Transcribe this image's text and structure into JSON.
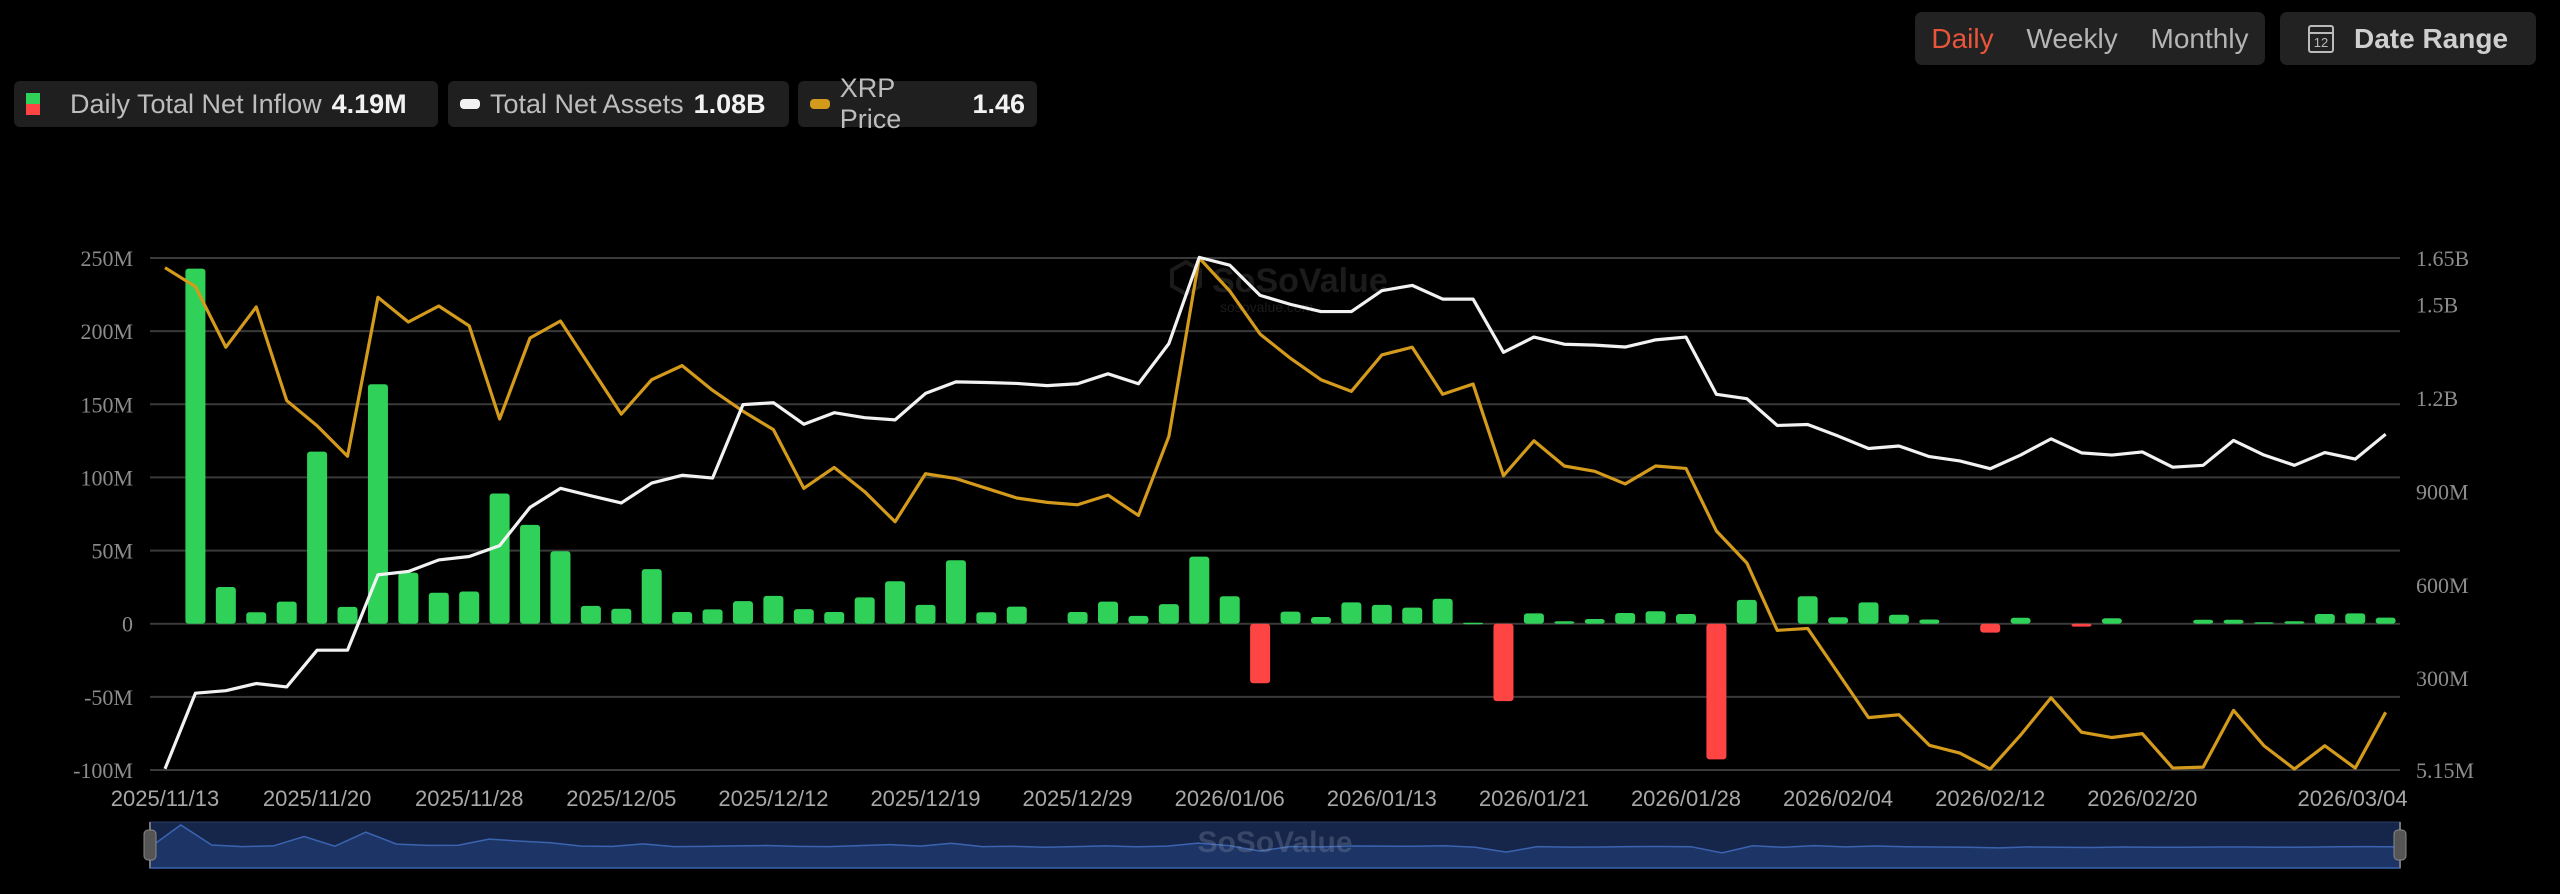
{
  "legend": {
    "inflow": {
      "label": "Daily Total Net Inflow",
      "value": "4.19M"
    },
    "assets": {
      "label": "Total Net Assets",
      "value": "1.08B"
    },
    "price": {
      "label": "XRP Price",
      "value": "1.46"
    }
  },
  "controls": {
    "periods": [
      "Daily",
      "Weekly",
      "Monthly"
    ],
    "active_period": "Daily",
    "date_range_label": "Date Range",
    "calendar_icon_text": "12"
  },
  "watermark": {
    "brand": "SoSoValue",
    "domain": "sosovalue.com"
  },
  "colors": {
    "inflow_positive": "#30d158",
    "inflow_negative": "#ff4444",
    "assets_line": "#f2f2f2",
    "price_line": "#d49a1c",
    "grid": "#3a3a3a",
    "slider_fill": "#1d3566"
  },
  "chart_data": {
    "type": "bar+line",
    "left_axis": {
      "ticks": [
        "250M",
        "200M",
        "150M",
        "100M",
        "50M",
        "0",
        "-50M",
        "-100M"
      ],
      "range_musd": [
        -100,
        250
      ]
    },
    "right_axis": {
      "ticks": [
        "1.65B",
        "1.5B",
        "1.2B",
        "900M",
        "600M",
        "300M",
        "5.15M"
      ],
      "range_busd": [
        0.00515,
        1.65
      ]
    },
    "price_axis": {
      "visible": false,
      "range": [
        1.346,
        2.402
      ]
    },
    "x_tick_labels": [
      {
        "i": 0,
        "label": "2025/11/13"
      },
      {
        "i": 5,
        "label": "2025/11/20"
      },
      {
        "i": 10,
        "label": "2025/11/28"
      },
      {
        "i": 15,
        "label": "2025/12/05"
      },
      {
        "i": 20,
        "label": "2025/12/12"
      },
      {
        "i": 25,
        "label": "2025/12/19"
      },
      {
        "i": 30,
        "label": "2025/12/29"
      },
      {
        "i": 35,
        "label": "2026/01/06"
      },
      {
        "i": 40,
        "label": "2026/01/13"
      },
      {
        "i": 45,
        "label": "2026/01/21"
      },
      {
        "i": 50,
        "label": "2026/01/28"
      },
      {
        "i": 55,
        "label": "2026/02/04"
      },
      {
        "i": 60,
        "label": "2026/02/12"
      },
      {
        "i": 65,
        "label": "2026/02/20"
      },
      {
        "i": 73,
        "label": "2026/03/04"
      }
    ],
    "grid": true,
    "legend_position": "top-left",
    "series": [
      {
        "name": "Daily Total Net Inflow",
        "type": "bar",
        "axis": "left",
        "unit": "M USD",
        "values": [
          null,
          242.7,
          25.1,
          7.8,
          15.1,
          117.6,
          11.5,
          163.7,
          34.9,
          21.2,
          22,
          89,
          67.6,
          49.5,
          12.2,
          10.2,
          37.3,
          8,
          9.8,
          15.4,
          19,
          10,
          8,
          18,
          29,
          12.9,
          43.4,
          7.8,
          11.7,
          null,
          8,
          15.1,
          5.4,
          13.4,
          45.9,
          18.8,
          -40.7,
          8.3,
          4.6,
          14.6,
          12.9,
          11,
          17.1,
          0.7,
          -52.9,
          7.1,
          1.7,
          3.2,
          7.3,
          8.5,
          6.6,
          -92.7,
          16.3,
          null,
          18.8,
          4.4,
          14.6,
          6.1,
          2.9,
          null,
          -6.1,
          4.1,
          null,
          -2,
          3.7,
          null,
          null,
          2.7,
          2.7,
          1,
          1.7,
          6.6,
          7.1,
          4.19
        ]
      },
      {
        "name": "Total Net Assets",
        "type": "line",
        "axis": "right",
        "unit": "B USD",
        "values": [
          0.009,
          0.252,
          0.26,
          0.283,
          0.272,
          0.39,
          0.39,
          0.632,
          0.643,
          0.68,
          0.691,
          0.726,
          0.849,
          0.91,
          0.886,
          0.863,
          0.927,
          0.952,
          0.943,
          1.179,
          1.185,
          1.116,
          1.153,
          1.137,
          1.13,
          1.215,
          1.252,
          1.25,
          1.247,
          1.24,
          1.246,
          1.278,
          1.246,
          1.375,
          1.652,
          1.627,
          1.53,
          1.501,
          1.478,
          1.478,
          1.545,
          1.562,
          1.518,
          1.518,
          1.347,
          1.396,
          1.373,
          1.37,
          1.364,
          1.387,
          1.396,
          1.212,
          1.198,
          1.112,
          1.115,
          1.078,
          1.038,
          1.046,
          1.012,
          0.998,
          0.973,
          1.017,
          1.069,
          1.024,
          1.017,
          1.027,
          0.978,
          0.984,
          1.064,
          1.017,
          0.984,
          1.025,
          1.004,
          1.084
        ]
      },
      {
        "name": "XRP Price",
        "type": "line",
        "axis": "price",
        "values": [
          2.382,
          2.343,
          2.218,
          2.301,
          2.108,
          2.056,
          1.993,
          2.321,
          2.27,
          2.303,
          2.262,
          2.07,
          2.237,
          2.272,
          2.176,
          2.08,
          2.151,
          2.18,
          2.129,
          2.086,
          2.048,
          1.927,
          1.97,
          1.92,
          1.858,
          1.957,
          1.947,
          1.927,
          1.907,
          1.898,
          1.893,
          1.913,
          1.871,
          2.034,
          2.402,
          2.334,
          2.245,
          2.195,
          2.151,
          2.127,
          2.202,
          2.218,
          2.121,
          2.142,
          1.953,
          2.025,
          1.973,
          1.962,
          1.936,
          1.973,
          1.968,
          1.839,
          1.773,
          1.634,
          1.638,
          1.546,
          1.454,
          1.46,
          1.397,
          1.381,
          1.348,
          1.418,
          1.495,
          1.424,
          1.413,
          1.421,
          1.35,
          1.352,
          1.469,
          1.396,
          1.348,
          1.396,
          1.35,
          1.465
        ]
      }
    ]
  }
}
